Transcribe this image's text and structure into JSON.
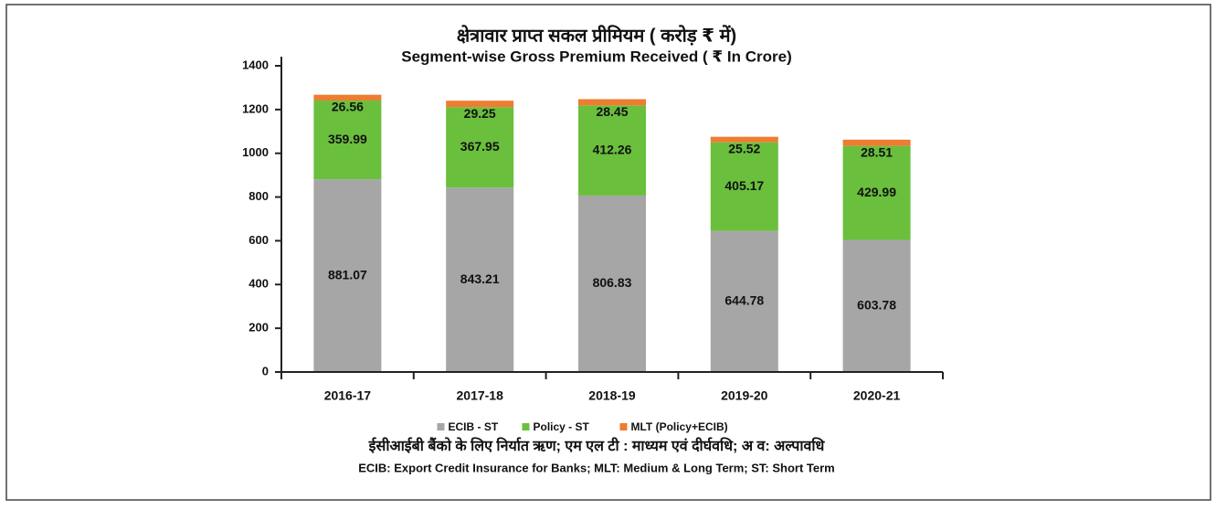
{
  "chart_data": {
    "type": "bar",
    "title": "क्षेत्रावार प्राप्त सकल प्रीमियम ( करोड़ ₹ में)",
    "subtitle": "Segment-wise Gross Premium Received ( ₹ In Crore)",
    "categories": [
      "2016-17",
      "2017-18",
      "2018-19",
      "2019-20",
      "2020-21"
    ],
    "series": [
      {
        "name": "ECIB - ST",
        "color": "#a6a6a6",
        "values": [
          881.07,
          843.21,
          806.83,
          644.78,
          603.78
        ]
      },
      {
        "name": "Policy - ST",
        "color": "#6abf3d",
        "values": [
          359.99,
          367.95,
          412.26,
          405.17,
          429.99
        ]
      },
      {
        "name": "MLT (Policy+ECIB)",
        "color": "#ed7d31",
        "values": [
          26.56,
          29.25,
          28.45,
          25.52,
          28.51
        ]
      }
    ],
    "stacked": true,
    "ylim": [
      0,
      1400
    ],
    "yticks": [
      0,
      200,
      400,
      600,
      800,
      1000,
      1200,
      1400
    ],
    "notes": [
      "ईसीआईबी  बैंको के लिए निर्यात ऋण; एम एल टी : माध्यम एवं दीर्घवधि; अ व: अल्पावधि",
      "ECIB: Export Credit Insurance for Banks; MLT: Medium & Long Term; ST: Short Term"
    ]
  }
}
